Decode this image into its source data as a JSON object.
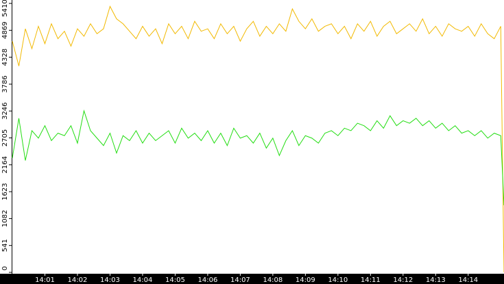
{
  "chart_data": {
    "type": "line",
    "x": [
      0,
      0.2,
      0.4,
      0.6,
      0.8,
      1.0,
      1.2,
      1.4,
      1.6,
      1.8,
      2.0,
      2.2,
      2.4,
      2.6,
      2.8,
      3.0,
      3.2,
      3.4,
      3.6,
      3.8,
      4.0,
      4.2,
      4.4,
      4.6,
      4.8,
      5.0,
      5.2,
      5.4,
      5.6,
      5.8,
      6.0,
      6.2,
      6.4,
      6.6,
      6.8,
      7.0,
      7.2,
      7.4,
      7.6,
      7.8,
      8.0,
      8.2,
      8.4,
      8.6,
      8.8,
      9.0,
      9.2,
      9.4,
      9.6,
      9.8,
      10.0,
      10.2,
      10.4,
      10.6,
      10.8,
      11.0,
      11.2,
      11.4,
      11.6,
      11.8,
      12.0,
      12.2,
      12.4,
      12.6,
      12.8,
      13.0,
      13.2,
      13.4,
      13.6,
      13.8,
      14.0,
      14.2,
      14.4,
      14.6,
      14.8,
      15.0,
      15.1
    ],
    "series": [
      {
        "color": "#f2b900",
        "values": [
          4650,
          4150,
          4900,
          4500,
          4950,
          4600,
          5000,
          4700,
          4850,
          4550,
          4900,
          4750,
          5000,
          4800,
          4900,
          5350,
          5100,
          5000,
          4850,
          4700,
          4950,
          4750,
          4900,
          4600,
          5000,
          4800,
          4950,
          4700,
          5050,
          4850,
          4900,
          4700,
          5000,
          4800,
          4950,
          4650,
          4900,
          5050,
          4750,
          4950,
          4800,
          5000,
          4850,
          5300,
          5050,
          4900,
          5100,
          4850,
          4950,
          5000,
          4800,
          4950,
          4700,
          5000,
          4850,
          5050,
          4750,
          4950,
          5050,
          4800,
          4900,
          5000,
          4850,
          5100,
          4800,
          4950,
          4750,
          5000,
          4900,
          4850,
          4950,
          4750,
          5000,
          4800,
          4700,
          4950,
          0
        ]
      },
      {
        "color": "#22dd11",
        "values": [
          2300,
          3100,
          2250,
          2850,
          2700,
          2950,
          2650,
          2800,
          2750,
          2950,
          2600,
          3250,
          2850,
          2700,
          2550,
          2800,
          2400,
          2750,
          2650,
          2850,
          2600,
          2800,
          2650,
          2750,
          2850,
          2600,
          2900,
          2700,
          2800,
          2650,
          2850,
          2600,
          2800,
          2550,
          2900,
          2700,
          2750,
          2600,
          2800,
          2500,
          2700,
          2350,
          2650,
          2850,
          2550,
          2750,
          2700,
          2600,
          2800,
          2850,
          2750,
          2900,
          2850,
          3000,
          2950,
          2850,
          3050,
          2900,
          3150,
          2950,
          3050,
          3000,
          3100,
          2950,
          3050,
          2900,
          3000,
          2850,
          2950,
          2800,
          2850,
          2750,
          2850,
          2700,
          2800,
          2750,
          1350
        ]
      }
    ],
    "xlim": [
      0,
      15.1
    ],
    "xticks": [
      {
        "value": 1,
        "label": "14:01"
      },
      {
        "value": 2,
        "label": "14:02"
      },
      {
        "value": 3,
        "label": "14:03"
      },
      {
        "value": 4,
        "label": "14:04"
      },
      {
        "value": 5,
        "label": "14:05"
      },
      {
        "value": 6,
        "label": "14:06"
      },
      {
        "value": 7,
        "label": "14:07"
      },
      {
        "value": 8,
        "label": "14:08"
      },
      {
        "value": 9,
        "label": "14:09"
      },
      {
        "value": 10,
        "label": "14:10"
      },
      {
        "value": 11,
        "label": "14:11"
      },
      {
        "value": 12,
        "label": "14:12"
      },
      {
        "value": 13,
        "label": "14:13"
      },
      {
        "value": 14,
        "label": "14:14"
      }
    ],
    "ylim": [
      0,
      5410
    ],
    "yticks": [
      0,
      541,
      1082,
      1623,
      2164,
      2705,
      3246,
      3786,
      4328,
      4869,
      5410
    ]
  }
}
